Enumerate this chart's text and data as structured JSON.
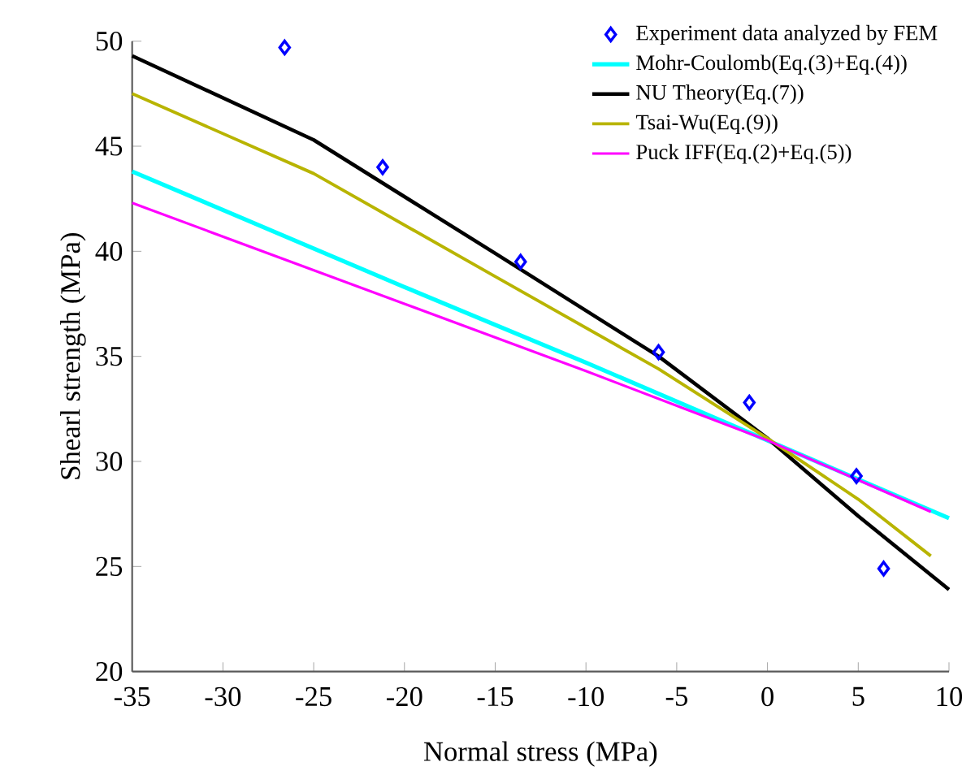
{
  "chart_data": {
    "type": "line",
    "xlabel": "Normal stress (MPa)",
    "ylabel": "Shearl strength (MPa)",
    "xlim": [
      -35,
      10
    ],
    "ylim": [
      20,
      50
    ],
    "xticks": [
      -35,
      -30,
      -25,
      -20,
      -15,
      -10,
      -5,
      0,
      5,
      10
    ],
    "yticks": [
      20,
      25,
      30,
      35,
      40,
      45,
      50
    ],
    "grid": false,
    "legend": "top right",
    "series": [
      {
        "name": "Experiment data analyzed by FEM",
        "type": "scatter",
        "marker": "diamond",
        "color": "#0000ff",
        "x": [
          -26.6,
          -21.2,
          -13.6,
          -6.0,
          -1.0,
          4.9,
          6.4
        ],
        "values": [
          49.7,
          44.0,
          39.5,
          35.2,
          32.8,
          29.3,
          24.9
        ]
      },
      {
        "name": "Mohr-Coulomb(Eq.(3)+Eq.(4))",
        "type": "line",
        "color": "#00ffff",
        "x": [
          -35,
          -20,
          -10,
          0,
          10
        ],
        "values": [
          43.8,
          38.3,
          34.7,
          31.0,
          27.3
        ]
      },
      {
        "name": "NU Theory(Eq.(7))",
        "type": "line",
        "color": "#000000",
        "x": [
          -35,
          -25,
          -15,
          -6,
          0,
          5,
          10
        ],
        "values": [
          49.3,
          45.3,
          39.9,
          35.0,
          31.1,
          27.4,
          23.9
        ]
      },
      {
        "name": "Tsai-Wu(Eq.(9))",
        "type": "line",
        "color": "#b8b400",
        "x": [
          -35,
          -25,
          -15,
          -6,
          0,
          5,
          9
        ],
        "values": [
          47.5,
          43.7,
          38.8,
          34.4,
          31.1,
          28.2,
          25.5
        ]
      },
      {
        "name": "Puck IFF(Eq.(2)+Eq.(5))",
        "type": "line",
        "color": "#ff00ff",
        "x": [
          -35,
          -20,
          -10,
          0,
          9
        ],
        "values": [
          42.3,
          37.5,
          34.3,
          31.0,
          27.6
        ]
      }
    ]
  }
}
